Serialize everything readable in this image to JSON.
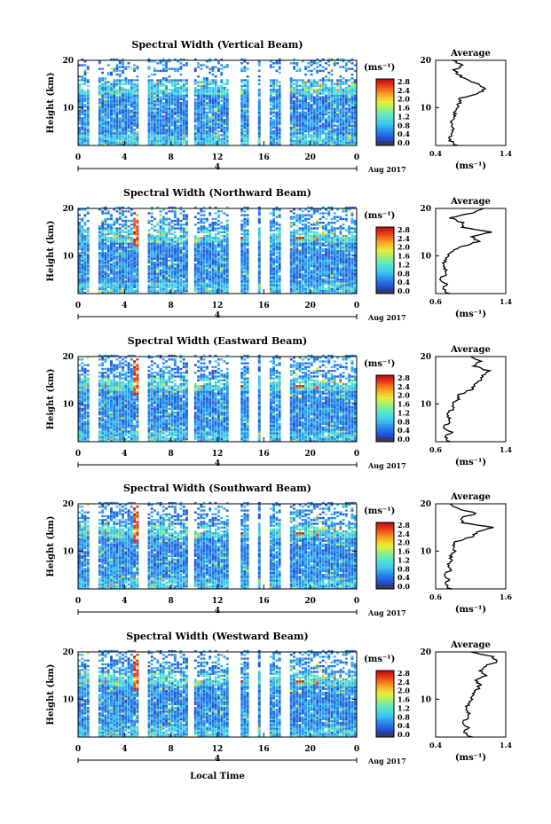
{
  "chart_data": [
    {
      "type": "heatmap",
      "title": "Spectral Width (Vertical Beam)",
      "ylabel": "Height (km)",
      "xticks": [
        "0",
        "4",
        "8",
        "12",
        "16",
        "20",
        "0"
      ],
      "xlim": [
        0,
        24
      ],
      "yticks": [
        "10",
        "20"
      ],
      "ylim": [
        2,
        20
      ],
      "date_sub": "4",
      "date_label": "Aug 2017",
      "colorbar_unit": "(ms⁻¹)",
      "colorbar_ticks": [
        "2.8",
        "2.4",
        "2.0",
        "1.6",
        "1.2",
        "0.8",
        "0.4",
        "0.0"
      ],
      "gaps": [
        [
          1.2,
          1.6
        ],
        [
          5.4,
          5.9
        ],
        [
          9.5,
          10.0
        ],
        [
          13.2,
          13.8
        ],
        [
          14.8,
          15.3
        ],
        [
          15.9,
          16.5
        ],
        [
          17.7,
          18.2
        ]
      ],
      "average": {
        "title": "Average",
        "xlabel": "(ms⁻¹)",
        "xticks": [
          "0.4",
          "1.4"
        ],
        "xlim": [
          0.4,
          1.4
        ],
        "heights": [
          2,
          3,
          4,
          5,
          6,
          7,
          8,
          9,
          10,
          11,
          12,
          13,
          14,
          15,
          16,
          17,
          18,
          19,
          20
        ],
        "values": [
          0.7,
          0.62,
          0.6,
          0.65,
          0.63,
          0.62,
          0.68,
          0.66,
          0.7,
          0.74,
          0.75,
          1.0,
          1.1,
          1.02,
          0.82,
          0.72,
          0.66,
          0.8,
          0.64
        ]
      }
    },
    {
      "type": "heatmap",
      "title": "Spectral Width (Northward Beam)",
      "ylabel": "Height (km)",
      "xticks": [
        "0",
        "4",
        "8",
        "12",
        "16",
        "20",
        "0"
      ],
      "xlim": [
        0,
        24
      ],
      "yticks": [
        "10",
        "20"
      ],
      "ylim": [
        2,
        20
      ],
      "date_sub": "4",
      "date_label": "Aug 2017",
      "colorbar_unit": "(ms⁻¹)",
      "colorbar_ticks": [
        "2.8",
        "2.4",
        "2.0",
        "1.6",
        "1.2",
        "0.8",
        "0.4",
        "0.0"
      ],
      "gaps": [
        [
          1.2,
          1.6
        ],
        [
          5.4,
          5.9
        ],
        [
          9.5,
          10.0
        ],
        [
          13.2,
          13.8
        ],
        [
          14.8,
          15.3
        ],
        [
          15.9,
          16.5
        ],
        [
          17.7,
          18.2
        ]
      ],
      "average": {
        "title": "Average",
        "xlabel": "(ms⁻¹)",
        "xticks": [
          "0.6",
          "1.4"
        ],
        "xlim": [
          0.6,
          1.4
        ],
        "heights": [
          2,
          3,
          4,
          5,
          6,
          7,
          8,
          9,
          10,
          11,
          12,
          13,
          14,
          15,
          16,
          17,
          18,
          19,
          20
        ],
        "values": [
          0.74,
          0.7,
          0.72,
          0.66,
          0.7,
          0.72,
          0.68,
          0.7,
          0.73,
          0.78,
          0.92,
          1.08,
          1.02,
          1.22,
          0.92,
          0.9,
          0.78,
          1.0,
          1.15
        ]
      }
    },
    {
      "type": "heatmap",
      "title": "Spectral Width (Eastward Beam)",
      "ylabel": "Height (km)",
      "xticks": [
        "0",
        "4",
        "8",
        "12",
        "16",
        "20",
        "0"
      ],
      "xlim": [
        0,
        24
      ],
      "yticks": [
        "10",
        "20"
      ],
      "ylim": [
        2,
        20
      ],
      "date_sub": "4",
      "date_label": "Aug 2017",
      "colorbar_unit": "(ms⁻¹)",
      "colorbar_ticks": [
        "2.8",
        "2.4",
        "2.0",
        "1.6",
        "1.2",
        "0.8",
        "0.4",
        "0.0"
      ],
      "gaps": [
        [
          1.2,
          1.6
        ],
        [
          5.4,
          5.9
        ],
        [
          9.5,
          10.0
        ],
        [
          13.2,
          13.8
        ],
        [
          14.8,
          15.3
        ],
        [
          15.9,
          16.5
        ],
        [
          17.7,
          18.2
        ]
      ],
      "average": {
        "title": "Average",
        "xlabel": "(ms⁻¹)",
        "xticks": [
          "0.6",
          "1.4"
        ],
        "xlim": [
          0.6,
          1.4
        ],
        "heights": [
          2,
          3,
          4,
          5,
          6,
          7,
          8,
          9,
          10,
          11,
          12,
          13,
          14,
          15,
          16,
          17,
          18,
          19,
          20
        ],
        "values": [
          0.75,
          0.72,
          0.78,
          0.7,
          0.74,
          0.76,
          0.72,
          0.8,
          0.78,
          0.85,
          0.88,
          1.0,
          1.05,
          1.1,
          1.15,
          1.2,
          1.05,
          1.1,
          1.0
        ]
      }
    },
    {
      "type": "heatmap",
      "title": "Spectral Width (Southward Beam)",
      "ylabel": "Height (km)",
      "xticks": [
        "0",
        "4",
        "8",
        "12",
        "16",
        "20",
        "0"
      ],
      "xlim": [
        0,
        24
      ],
      "yticks": [
        "10",
        "20"
      ],
      "ylim": [
        2,
        20
      ],
      "date_sub": "4",
      "date_label": "Aug 2017",
      "colorbar_unit": "(ms⁻¹)",
      "colorbar_ticks": [
        "2.8",
        "2.4",
        "2.0",
        "1.6",
        "1.2",
        "0.8",
        "0.4",
        "0.0"
      ],
      "gaps": [
        [
          1.2,
          1.6
        ],
        [
          5.4,
          5.9
        ],
        [
          9.5,
          10.0
        ],
        [
          13.2,
          13.8
        ],
        [
          14.8,
          15.3
        ],
        [
          15.9,
          16.5
        ],
        [
          17.7,
          18.2
        ]
      ],
      "average": {
        "title": "Average",
        "xlabel": "(ms⁻¹)",
        "xticks": [
          "0.6",
          "1.6"
        ],
        "xlim": [
          0.6,
          1.6
        ],
        "heights": [
          2,
          3,
          4,
          5,
          6,
          7,
          8,
          9,
          10,
          11,
          12,
          13,
          14,
          15,
          16,
          17,
          18,
          19,
          20
        ],
        "values": [
          0.8,
          0.76,
          0.78,
          0.74,
          0.8,
          0.78,
          0.82,
          0.8,
          0.86,
          0.84,
          0.9,
          1.1,
          1.2,
          1.4,
          1.0,
          0.95,
          1.2,
          0.9,
          0.8
        ]
      }
    },
    {
      "type": "heatmap",
      "title": "Spectral Width (Westward Beam)",
      "ylabel": "Height (km)",
      "xticks": [
        "0",
        "4",
        "8",
        "12",
        "16",
        "20",
        "0"
      ],
      "xlim": [
        0,
        24
      ],
      "yticks": [
        "10",
        "20"
      ],
      "ylim": [
        2,
        20
      ],
      "date_sub": "4",
      "date_label": "Aug 2017",
      "colorbar_unit": "(ms⁻¹)",
      "colorbar_ticks": [
        "2.8",
        "2.4",
        "2.0",
        "1.6",
        "1.2",
        "0.8",
        "0.4",
        "0.0"
      ],
      "gaps": [
        [
          1.2,
          1.6
        ],
        [
          5.4,
          5.9
        ],
        [
          9.5,
          10.0
        ],
        [
          13.2,
          13.8
        ],
        [
          14.8,
          15.3
        ],
        [
          15.9,
          16.5
        ],
        [
          17.7,
          18.2
        ]
      ],
      "average": {
        "title": "Average",
        "xlabel": "(ms⁻¹)",
        "xticks": [
          "0.4",
          "1.4"
        ],
        "xlim": [
          0.4,
          1.4
        ],
        "heights": [
          2,
          3,
          4,
          5,
          6,
          7,
          8,
          9,
          10,
          11,
          12,
          13,
          14,
          15,
          16,
          17,
          18,
          19,
          20
        ],
        "values": [
          0.9,
          0.82,
          0.86,
          0.8,
          0.84,
          0.88,
          0.82,
          0.86,
          0.9,
          0.92,
          1.0,
          1.02,
          0.98,
          1.1,
          1.05,
          1.1,
          1.3,
          1.2,
          0.9
        ]
      }
    }
  ],
  "xaxis_title": "Local Time",
  "colors": {
    "low": "#2b3fa8",
    "high": "#d81e1e",
    "mid": "#46c3e8",
    "cbar_bottom": "#3a3a5a"
  }
}
